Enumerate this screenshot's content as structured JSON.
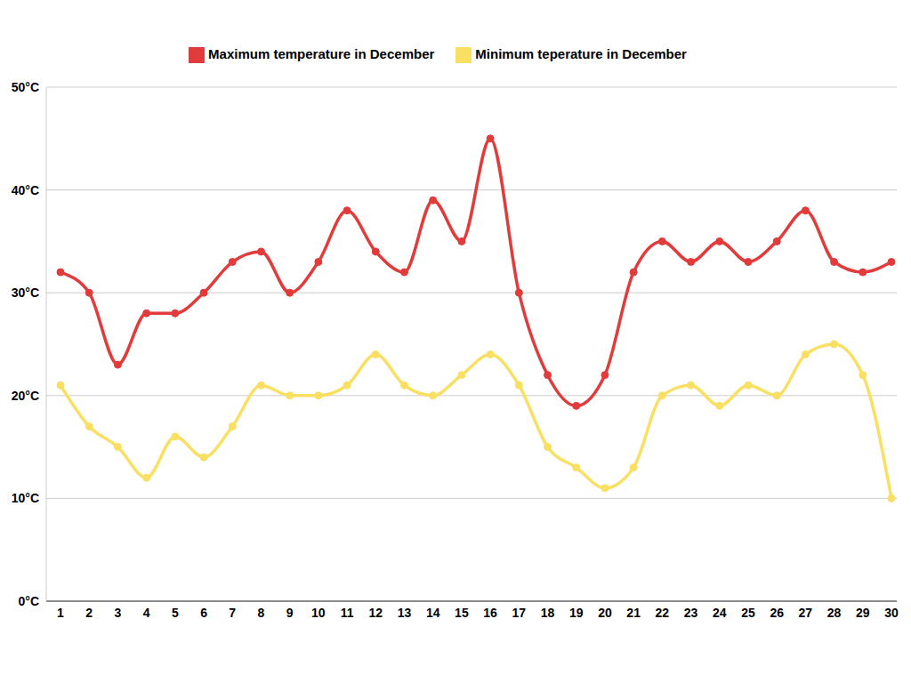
{
  "chart_data": {
    "type": "line",
    "categories": [
      "1",
      "2",
      "3",
      "4",
      "5",
      "6",
      "7",
      "8",
      "9",
      "10",
      "11",
      "12",
      "13",
      "14",
      "15",
      "16",
      "17",
      "18",
      "19",
      "20",
      "21",
      "22",
      "23",
      "24",
      "25",
      "26",
      "27",
      "28",
      "29",
      "30"
    ],
    "series": [
      {
        "name": "Minimum teperature in December",
        "color": "#f9df62",
        "marker": "circle",
        "values": [
          21,
          17,
          15,
          12,
          16,
          14,
          17,
          21,
          20,
          20,
          21,
          24,
          21,
          20,
          22,
          24,
          21,
          15,
          13,
          11,
          13,
          20,
          21,
          19,
          21,
          20,
          24,
          25,
          22,
          10
        ]
      },
      {
        "name": "Maximum temperature in December",
        "color": "#e23b3b",
        "marker": "circle",
        "values": [
          32,
          30,
          23,
          28,
          28,
          30,
          33,
          34,
          30,
          33,
          38,
          34,
          32,
          39,
          35,
          45,
          30,
          22,
          19,
          22,
          32,
          35,
          33,
          35,
          33,
          35,
          38,
          33,
          32,
          33
        ]
      }
    ],
    "ylim": [
      0,
      50
    ],
    "yticks": [
      {
        "value": 0,
        "label": "0°C"
      },
      {
        "value": 10,
        "label": "10°C"
      },
      {
        "value": 20,
        "label": "20°C"
      },
      {
        "value": 30,
        "label": "30°C"
      },
      {
        "value": 40,
        "label": "40°C"
      },
      {
        "value": 50,
        "label": "50°C"
      }
    ],
    "grid": true,
    "legend": "top"
  }
}
